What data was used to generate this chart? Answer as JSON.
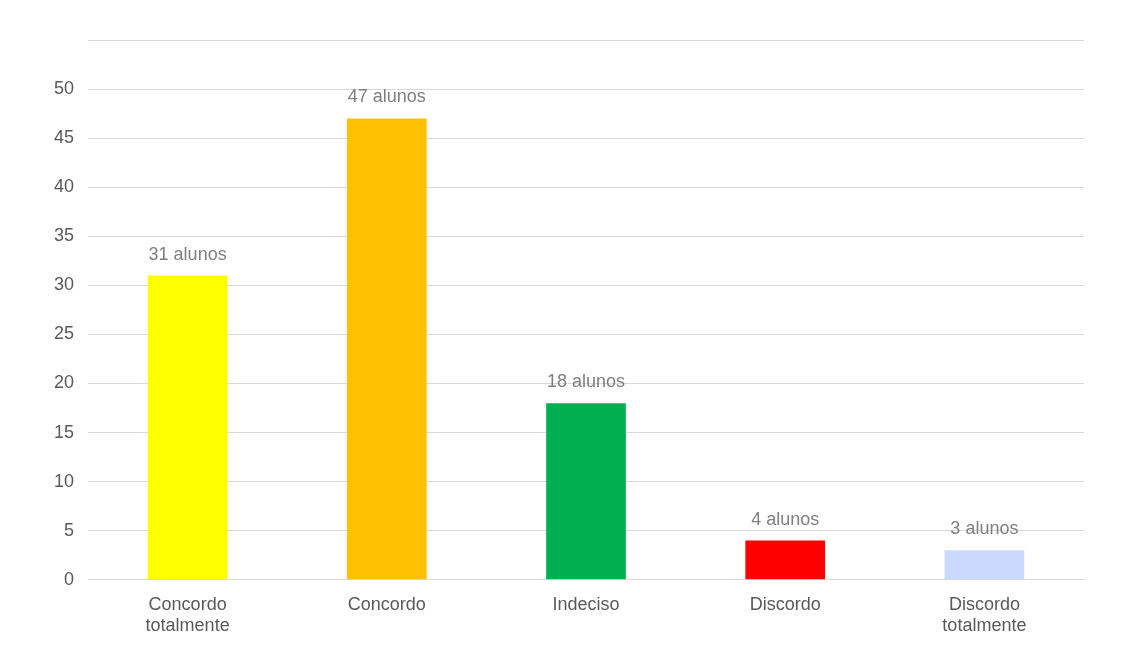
{
  "chart_data": {
    "type": "bar",
    "categories": [
      "Concordo totalmente",
      "Concordo",
      "Indeciso",
      "Discordo",
      "Discordo totalmente"
    ],
    "values": [
      31,
      47,
      18,
      4,
      3
    ],
    "colors": [
      "#ffff00",
      "#ffc000",
      "#00b050",
      "#ff0000",
      "#c9d9ff"
    ],
    "value_labels": [
      "31 alunos",
      "47 alunos",
      "18 alunos",
      "4 alunos",
      "3 alunos"
    ],
    "ylim": [
      0,
      55
    ],
    "yticks": [
      0,
      5,
      10,
      15,
      20,
      25,
      30,
      35,
      40,
      45,
      50,
      {
        "value": 55,
        "label": null
      }
    ],
    "grid": "y",
    "legend": false
  }
}
